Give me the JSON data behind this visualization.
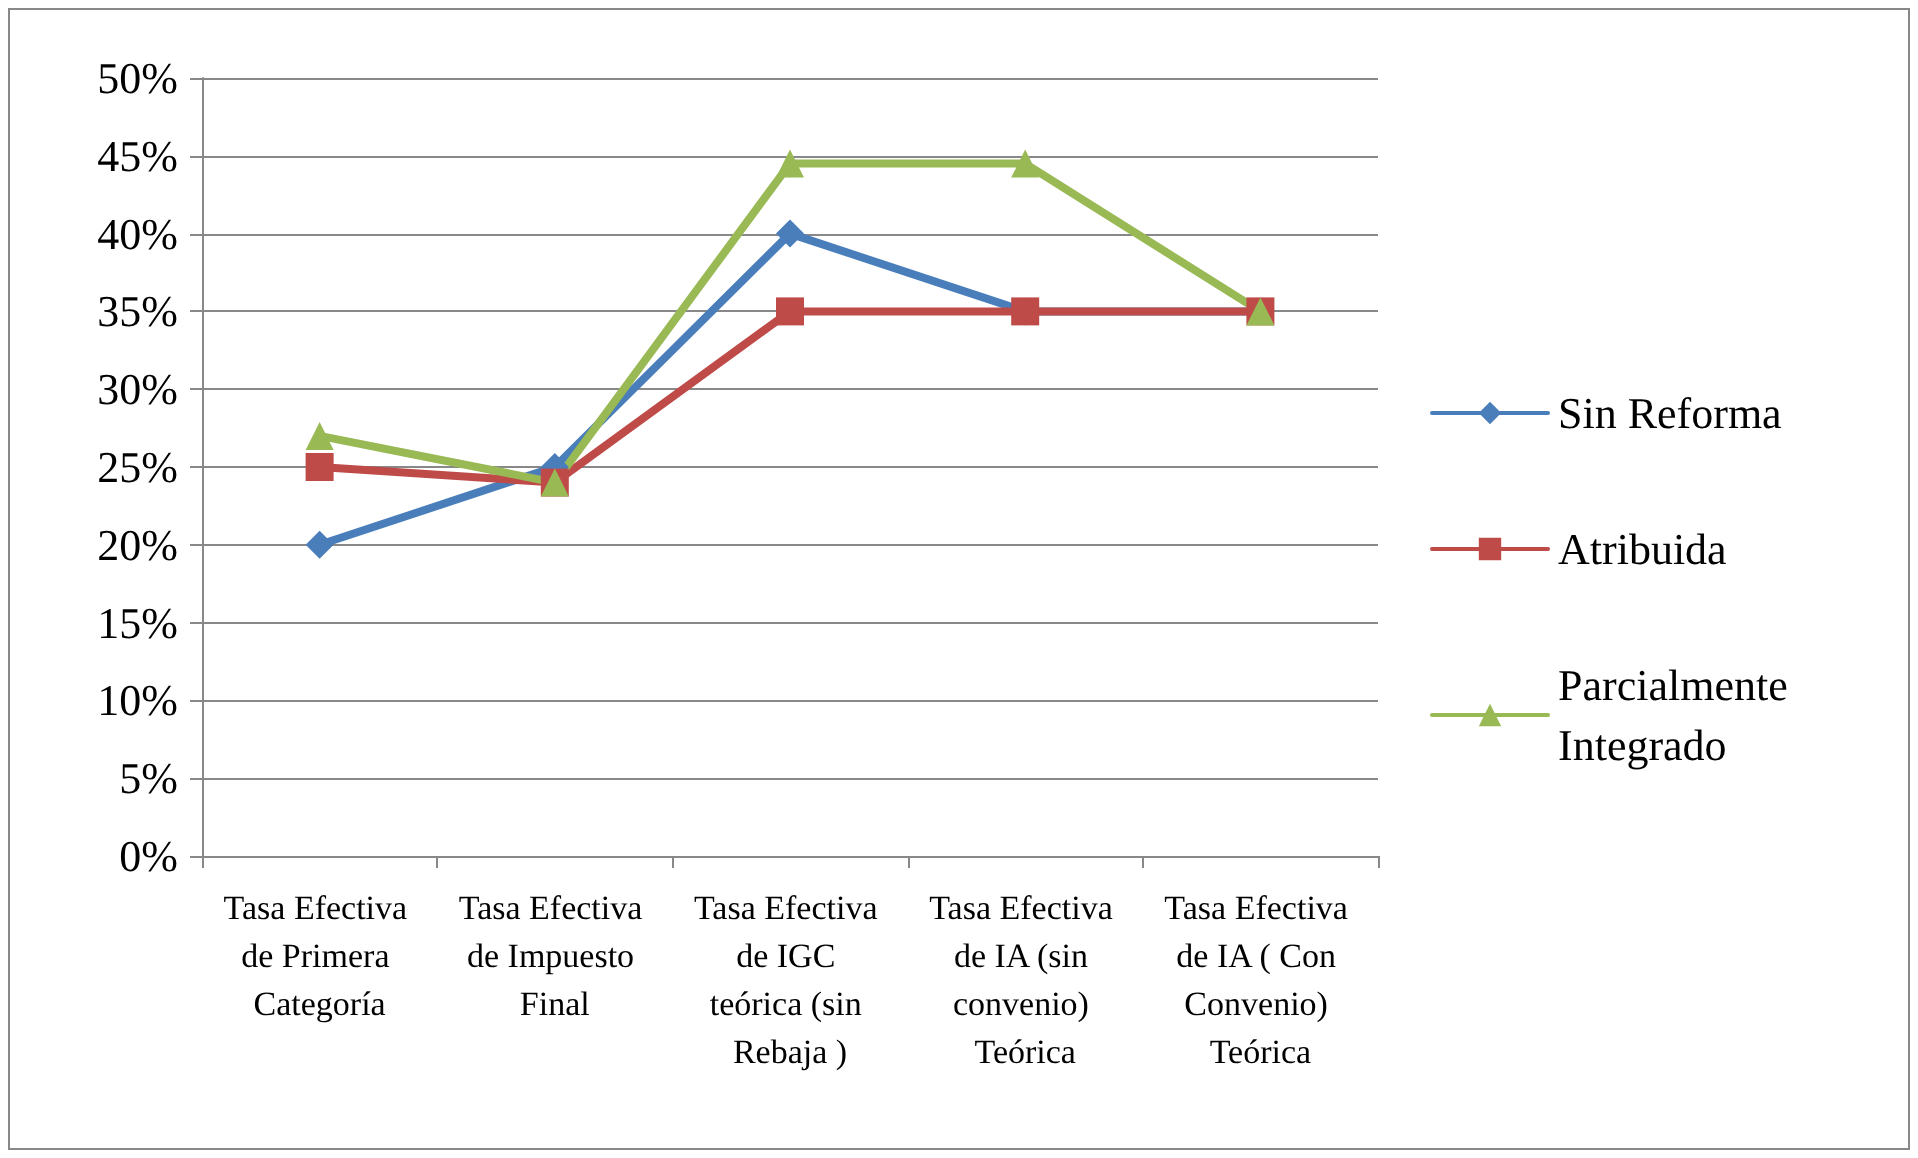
{
  "chart_data": {
    "type": "line",
    "categories": [
      "Tasa Efectiva de Primera Categoría",
      "Tasa Efectiva de Impuesto Final",
      "Tasa Efectiva de IGC teórica (sin Rebaja )",
      "Tasa Efectiva de IA (sin convenio) Teórica",
      "Tasa Efectiva de IA ( Con Convenio) Teórica"
    ],
    "series": [
      {
        "name": "Sin Reforma",
        "color": "#4a7ebb",
        "marker": "diamond",
        "values": [
          20,
          25,
          40,
          35,
          35
        ]
      },
      {
        "name": "Atribuida",
        "color": "#be4b48",
        "marker": "square",
        "values": [
          25,
          24,
          35,
          35,
          35
        ]
      },
      {
        "name": "Parcialmente Integrado",
        "color": "#98b954",
        "marker": "triangle",
        "values": [
          27,
          24,
          44.5,
          44.5,
          35
        ]
      }
    ],
    "ylim": [
      0,
      50
    ],
    "yticks": [
      {
        "value": 0,
        "label": "0%"
      },
      {
        "value": 5,
        "label": "5%"
      },
      {
        "value": 10,
        "label": "10%"
      },
      {
        "value": 15,
        "label": "15%"
      },
      {
        "value": 20,
        "label": "20%"
      },
      {
        "value": 25,
        "label": "25%"
      },
      {
        "value": 30,
        "label": "30%"
      },
      {
        "value": 35,
        "label": "35%"
      },
      {
        "value": 40,
        "label": "40%"
      },
      {
        "value": 45,
        "label": "45%"
      },
      {
        "value": 50,
        "label": "50%"
      }
    ],
    "grid": "y",
    "legend": "right",
    "line_style": "solid"
  }
}
